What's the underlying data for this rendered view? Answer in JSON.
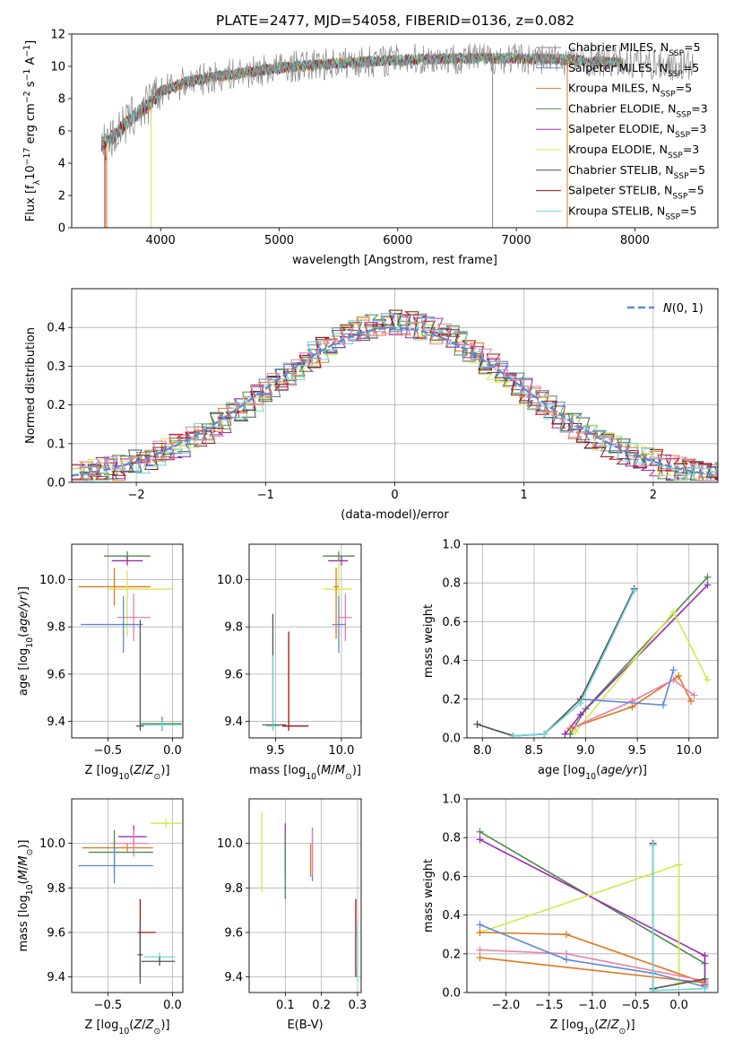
{
  "figure": {
    "title": "PLATE=2477, MJD=54058, FIBERID=0136, z=0.082"
  },
  "chart_data": [
    {
      "id": "spectrum",
      "type": "line",
      "title": "PLATE=2477, MJD=54058, FIBERID=0136, z=0.082",
      "xlabel": "wavelength [Angstrom, rest frame]",
      "ylabel": "Flux [fλ10⁻¹⁷ erg cm⁻² s⁻¹ A⁻¹]",
      "xlim": [
        3250,
        8700
      ],
      "ylim": [
        0,
        12
      ],
      "xticks": [
        4000,
        5000,
        6000,
        7000,
        8000
      ],
      "yticks": [
        0,
        2,
        4,
        6,
        8,
        10,
        12
      ],
      "grid": false,
      "legend_position": "right",
      "spectrum_shape": {
        "x": [
          3500,
          3600,
          3700,
          3800,
          3900,
          4000,
          4200,
          4500,
          5000,
          5500,
          6000,
          6500,
          7000,
          7500,
          8000,
          8500
        ],
        "y": [
          5.2,
          5.6,
          6.4,
          7.1,
          7.6,
          8.4,
          9.0,
          9.4,
          9.9,
          10.2,
          10.4,
          10.5,
          10.5,
          10.4,
          10.2,
          10.0
        ]
      },
      "series": [
        {
          "name": "Chabrier MILES, N_SSP=5",
          "label_main": "Chabrier MILES, N",
          "label_sub": "SSP",
          "label_tail": "=5",
          "color": "#888888"
        },
        {
          "name": "Salpeter MILES, N_SSP=5",
          "label_main": "Salpeter MILES, N",
          "label_sub": "SSP",
          "label_tail": "=5",
          "color": "#5b8bd6"
        },
        {
          "name": "Kroupa MILES, N_SSP=5",
          "label_main": "Kroupa MILES, N",
          "label_sub": "SSP",
          "label_tail": "=5",
          "color": "#e07820"
        },
        {
          "name": "Chabrier ELODIE, N_SSP=3",
          "label_main": "Chabrier ELODIE, N",
          "label_sub": "SSP",
          "label_tail": "=3",
          "color": "#4e8a4e"
        },
        {
          "name": "Salpeter ELODIE, N_SSP=3",
          "label_main": "Salpeter ELODIE, N",
          "label_sub": "SSP",
          "label_tail": "=3",
          "color": "#9a2cb0"
        },
        {
          "name": "Kroupa ELODIE, N_SSP=3",
          "label_main": "Kroupa ELODIE, N",
          "label_sub": "SSP",
          "label_tail": "=3",
          "color": "#d4e84a"
        },
        {
          "name": "Chabrier STELIB, N_SSP=5",
          "label_main": "Chabrier STELIB, N",
          "label_sub": "SSP",
          "label_tail": "=5",
          "color": "#555555"
        },
        {
          "name": "Salpeter STELIB, N_SSP=5",
          "label_main": "Salpeter STELIB, N",
          "label_sub": "SSP",
          "label_tail": "=5",
          "color": "#a01010"
        },
        {
          "name": "Kroupa STELIB, N_SSP=5",
          "label_main": "Kroupa STELIB, N",
          "label_sub": "SSP",
          "label_tail": "=5",
          "color": "#6fd6d6"
        }
      ]
    },
    {
      "id": "residuals",
      "type": "line",
      "xlabel": "(data-model)/error",
      "ylabel": "Normed distribution",
      "xlim": [
        -2.5,
        2.5
      ],
      "ylim": [
        0,
        0.5
      ],
      "xticks": [
        -2,
        -1,
        0,
        1,
        2
      ],
      "yticks": [
        0.0,
        0.1,
        0.2,
        0.3,
        0.4
      ],
      "grid": true,
      "legend_position": "top-right",
      "gaussian": {
        "name": "N(0,1)",
        "mean": 0,
        "sigma": 1,
        "color": "#5b8bd6"
      },
      "hist_colors": [
        "#5b8bd6",
        "#e07820",
        "#4e8a4e",
        "#9a2cb0",
        "#d4e84a",
        "#555555",
        "#a01010",
        "#6fd6d6",
        "#e880b0"
      ],
      "bin_width": 0.1,
      "hist_reference": [
        0.018,
        0.02,
        0.026,
        0.03,
        0.033,
        0.038,
        0.044,
        0.05,
        0.057,
        0.064,
        0.072,
        0.08,
        0.09,
        0.1,
        0.11,
        0.122,
        0.133,
        0.146,
        0.16,
        0.174,
        0.188,
        0.203,
        0.218,
        0.234,
        0.25,
        0.266,
        0.282,
        0.298,
        0.313,
        0.328,
        0.343,
        0.356,
        0.369,
        0.38,
        0.39,
        0.397,
        0.403,
        0.408,
        0.41,
        0.41,
        0.41,
        0.408,
        0.403,
        0.397,
        0.39,
        0.38,
        0.369,
        0.356,
        0.343,
        0.328,
        0.313,
        0.298,
        0.282,
        0.266,
        0.25,
        0.234,
        0.218,
        0.203,
        0.188,
        0.174,
        0.16,
        0.146,
        0.133,
        0.122,
        0.11,
        0.1,
        0.09,
        0.08,
        0.072,
        0.064,
        0.057,
        0.05,
        0.044,
        0.038,
        0.033,
        0.03,
        0.026,
        0.024,
        0.022,
        0.02
      ]
    },
    {
      "id": "age_vs_Z",
      "type": "scatter",
      "xlabel": "Z [log10(Z/Z⊙)]",
      "ylabel": "age  [log10(age/yr)]",
      "xlim": [
        -0.78,
        0.08
      ],
      "ylim": [
        9.33,
        10.15
      ],
      "xticks": [
        -0.5,
        0.0
      ],
      "yticks": [
        9.4,
        9.6,
        9.8,
        10.0
      ],
      "grid": true,
      "crosses": [
        {
          "x": -0.35,
          "y": 10.1,
          "xerr": [
            0.18,
            0.18
          ],
          "yerr": [
            0.02,
            0.02
          ],
          "color": "#4e8a4e"
        },
        {
          "x": -0.35,
          "y": 10.08,
          "xerr": [
            0.12,
            0.12
          ],
          "yerr": [
            0.02,
            0.02
          ],
          "color": "#9a2cb0"
        },
        {
          "x": -0.45,
          "y": 9.97,
          "xerr": [
            0.28,
            0.28
          ],
          "yerr": [
            0.08,
            0.08
          ],
          "color": "#e07820"
        },
        {
          "x": -0.35,
          "y": 9.96,
          "xerr": [
            0.15,
            0.35
          ],
          "yerr": [
            0.2,
            0.08
          ],
          "color": "#d4e84a"
        },
        {
          "x": -0.3,
          "y": 9.84,
          "xerr": [
            0.13,
            0.13
          ],
          "yerr": [
            0.1,
            0.1
          ],
          "color": "#e880b0"
        },
        {
          "x": -0.38,
          "y": 9.81,
          "xerr": [
            0.33,
            0.15
          ],
          "yerr": [
            0.12,
            0.12
          ],
          "color": "#5b8bd6"
        },
        {
          "x": -0.08,
          "y": 9.39,
          "xerr": [
            0.17,
            0.15
          ],
          "yerr": [
            0.03,
            0.03
          ],
          "color": "#4e8a4e"
        },
        {
          "x": -0.08,
          "y": 9.385,
          "xerr": [
            0.17,
            0.15
          ],
          "yerr": [
            0.02,
            0.02
          ],
          "color": "#6fd6d6"
        },
        {
          "x": -0.25,
          "y": 9.38,
          "xerr": [
            0.03,
            0.03
          ],
          "yerr": [
            0.02,
            0.45
          ],
          "color": "#555555"
        }
      ]
    },
    {
      "id": "age_vs_mass",
      "type": "scatter",
      "xlabel": "mass [log10(M/M⊙)]",
      "ylabel": "",
      "xlim": [
        9.3,
        10.15
      ],
      "ylim": [
        9.33,
        10.15
      ],
      "xticks": [
        9.5,
        10.0
      ],
      "yticks": [
        9.4,
        9.6,
        9.8,
        10.0
      ],
      "grid": true,
      "crosses": [
        {
          "x": 9.98,
          "y": 10.1,
          "xerr": [
            0.12,
            0.12
          ],
          "yerr": [
            0.02,
            0.02
          ],
          "color": "#4e8a4e"
        },
        {
          "x": 10.0,
          "y": 10.08,
          "xerr": [
            0.1,
            0.05
          ],
          "yerr": [
            0.02,
            0.02
          ],
          "color": "#9a2cb0"
        },
        {
          "x": 9.98,
          "y": 9.96,
          "xerr": [
            0.12,
            0.1
          ],
          "yerr": [
            0.2,
            0.12
          ],
          "color": "#d4e84a"
        },
        {
          "x": 10.03,
          "y": 9.84,
          "xerr": [
            0.05,
            0.05
          ],
          "yerr": [
            0.1,
            0.1
          ],
          "color": "#e880b0"
        },
        {
          "x": 9.98,
          "y": 9.81,
          "xerr": [
            0.05,
            0.05
          ],
          "yerr": [
            0.12,
            0.12
          ],
          "color": "#5b8bd6"
        },
        {
          "x": 9.96,
          "y": 9.97,
          "xerr": [
            0.02,
            0.02
          ],
          "yerr": [
            0.22,
            0.08
          ],
          "color": "#e07820"
        },
        {
          "x": 9.48,
          "y": 9.385,
          "xerr": [
            0.08,
            0.1
          ],
          "yerr": [
            0.02,
            0.47
          ],
          "color": "#555555"
        },
        {
          "x": 9.48,
          "y": 9.38,
          "xerr": [
            0.05,
            0.05
          ],
          "yerr": [
            0.02,
            0.3
          ],
          "color": "#6fd6d6"
        },
        {
          "x": 9.6,
          "y": 9.38,
          "xerr": [
            0.05,
            0.15
          ],
          "yerr": [
            0.02,
            0.4
          ],
          "color": "#a01010"
        }
      ]
    },
    {
      "id": "mass_weight_vs_age",
      "type": "line",
      "xlabel": "age  [log10(age/yr)]",
      "ylabel": "mass weight",
      "xlim": [
        7.85,
        10.28
      ],
      "ylim": [
        0,
        1.0
      ],
      "xticks": [
        8.0,
        8.5,
        9.0,
        9.5,
        10.0
      ],
      "yticks": [
        0.0,
        0.2,
        0.4,
        0.6,
        0.8,
        1.0
      ],
      "grid": true,
      "series": [
        {
          "color": "#4e8a4e",
          "x": [
            8.85,
            9.0,
            10.18
          ],
          "y": [
            0.02,
            0.15,
            0.83
          ]
        },
        {
          "color": "#9a2cb0",
          "x": [
            8.8,
            8.95,
            10.18
          ],
          "y": [
            0.02,
            0.12,
            0.79
          ]
        },
        {
          "color": "#d4e84a",
          "x": [
            8.9,
            9.85,
            10.18
          ],
          "y": [
            0.03,
            0.65,
            0.3
          ]
        },
        {
          "color": "#e07820",
          "x": [
            8.85,
            9.45,
            9.9,
            10.02
          ],
          "y": [
            0.05,
            0.16,
            0.32,
            0.19
          ]
        },
        {
          "color": "#e880b0",
          "x": [
            8.9,
            9.45,
            9.85,
            10.05
          ],
          "y": [
            0.06,
            0.19,
            0.3,
            0.22
          ]
        },
        {
          "color": "#5b8bd6",
          "x": [
            7.95,
            8.3,
            8.6,
            8.95,
            9.75,
            9.85
          ],
          "y": [
            0.07,
            0.01,
            0.02,
            0.2,
            0.17,
            0.35
          ]
        },
        {
          "color": "#555555",
          "x": [
            7.95,
            8.3,
            8.6,
            8.95,
            9.47
          ],
          "y": [
            0.07,
            0.01,
            0.02,
            0.2,
            0.77
          ]
        },
        {
          "color": "#6fd6d6",
          "x": [
            8.3,
            8.6,
            8.95,
            9.47
          ],
          "y": [
            0.01,
            0.02,
            0.18,
            0.76
          ]
        }
      ]
    },
    {
      "id": "mass_vs_Z",
      "type": "scatter",
      "xlabel": "Z [log10(Z/Z⊙)]",
      "ylabel": "mass [log10(M/M⊙)]",
      "xlim": [
        -0.78,
        0.08
      ],
      "ylim": [
        9.33,
        10.2
      ],
      "xticks": [
        -0.5,
        0.0
      ],
      "yticks": [
        9.4,
        9.6,
        9.8,
        10.0
      ],
      "grid": true,
      "crosses": [
        {
          "x": -0.05,
          "y": 10.09,
          "xerr": [
            0.12,
            0.12
          ],
          "yerr": [
            0.02,
            0.02
          ],
          "color": "#d4e84a"
        },
        {
          "x": -0.3,
          "y": 10.03,
          "xerr": [
            0.12,
            0.1
          ],
          "yerr": [
            0.05,
            0.05
          ],
          "color": "#9a2cb0"
        },
        {
          "x": -0.35,
          "y": 9.98,
          "xerr": [
            0.35,
            0.2
          ],
          "yerr": [
            0.02,
            0.02
          ],
          "color": "#e07820"
        },
        {
          "x": -0.3,
          "y": 10.0,
          "xerr": [
            0.18,
            0.12
          ],
          "yerr": [
            0.06,
            0.06
          ],
          "color": "#e880b0"
        },
        {
          "x": -0.45,
          "y": 9.96,
          "xerr": [
            0.2,
            0.3
          ],
          "yerr": [
            0.1,
            0.1
          ],
          "color": "#4e8a4e"
        },
        {
          "x": -0.45,
          "y": 9.9,
          "xerr": [
            0.28,
            0.3
          ],
          "yerr": [
            0.08,
            0.08
          ],
          "color": "#5b8bd6"
        },
        {
          "x": -0.25,
          "y": 9.6,
          "xerr": [
            0.02,
            0.12
          ],
          "yerr": [
            0.2,
            0.15
          ],
          "color": "#a01010"
        },
        {
          "x": -0.1,
          "y": 9.49,
          "xerr": [
            0.12,
            0.12
          ],
          "yerr": [
            0.02,
            0.02
          ],
          "color": "#6fd6d6"
        },
        {
          "x": -0.1,
          "y": 9.47,
          "xerr": [
            0.14,
            0.12
          ],
          "yerr": [
            0.02,
            0.02
          ],
          "color": "#555555"
        },
        {
          "x": -0.25,
          "y": 9.5,
          "xerr": [
            0.02,
            0.02
          ],
          "yerr": [
            0.13,
            0.15
          ],
          "color": "#555555"
        }
      ]
    },
    {
      "id": "mass_vs_ebv",
      "type": "scatter",
      "xlabel": "E(B-V)",
      "ylabel": "",
      "xlim": [
        0.0,
        0.31
      ],
      "ylim": [
        9.33,
        10.2
      ],
      "xticks": [
        0.1,
        0.2,
        0.3
      ],
      "yticks": [
        9.4,
        9.6,
        9.8,
        10.0
      ],
      "grid": true,
      "crosses": [
        {
          "x": 0.035,
          "y": 9.96,
          "xerr": [
            0,
            0
          ],
          "yerr": [
            0.18,
            0.18
          ],
          "color": "#d4e84a"
        },
        {
          "x": 0.1,
          "y": 9.97,
          "xerr": [
            0,
            0
          ],
          "yerr": [
            0.12,
            0.12
          ],
          "color": "#9a2cb0"
        },
        {
          "x": 0.1,
          "y": 9.95,
          "xerr": [
            0,
            0
          ],
          "yerr": [
            0.2,
            0.1
          ],
          "color": "#4e8a4e"
        },
        {
          "x": 0.17,
          "y": 9.95,
          "xerr": [
            0,
            0
          ],
          "yerr": [
            0.1,
            0.05
          ],
          "color": "#e07820"
        },
        {
          "x": 0.175,
          "y": 9.95,
          "xerr": [
            0,
            0
          ],
          "yerr": [
            0.12,
            0.12
          ],
          "color": "#5b8bd6"
        },
        {
          "x": 0.175,
          "y": 9.96,
          "xerr": [
            0,
            0
          ],
          "yerr": [
            0.1,
            0.1
          ],
          "color": "#e880b0"
        },
        {
          "x": 0.295,
          "y": 9.6,
          "xerr": [
            0,
            0
          ],
          "yerr": [
            0.2,
            0.15
          ],
          "color": "#a01010"
        },
        {
          "x": 0.3,
          "y": 9.5,
          "xerr": [
            0,
            0
          ],
          "yerr": [
            0.12,
            0.15
          ],
          "color": "#6fd6d6"
        }
      ]
    },
    {
      "id": "mass_weight_vs_Z",
      "type": "line",
      "xlabel": "Z [log10(Z/Z⊙)]",
      "ylabel": "mass weight",
      "xlim": [
        -2.45,
        0.45
      ],
      "ylim": [
        0,
        1.0
      ],
      "xticks": [
        -2.0,
        -1.5,
        -1.0,
        -0.5,
        0.0
      ],
      "yticks": [
        0.0,
        0.2,
        0.4,
        0.6,
        0.8,
        1.0
      ],
      "grid": true,
      "series": [
        {
          "color": "#4e8a4e",
          "x": [
            -2.3,
            0.3
          ],
          "y": [
            0.83,
            0.15
          ]
        },
        {
          "color": "#9a2cb0",
          "x": [
            -2.3,
            0.3,
            0.3
          ],
          "y": [
            0.79,
            0.19,
            0.04
          ]
        },
        {
          "color": "#d4e84a",
          "x": [
            -2.3,
            0.0,
            0.0
          ],
          "y": [
            0.31,
            0.66,
            0.05
          ]
        },
        {
          "color": "#e07820",
          "x": [
            -2.3,
            -1.3,
            0.3,
            -2.3
          ],
          "y": [
            0.31,
            0.3,
            0.05,
            0.18
          ]
        },
        {
          "color": "#e880b0",
          "x": [
            -2.3,
            -1.3,
            0.3
          ],
          "y": [
            0.22,
            0.2,
            0.06
          ]
        },
        {
          "color": "#5b8bd6",
          "x": [
            -2.3,
            -1.3,
            -0.3,
            0.3
          ],
          "y": [
            0.35,
            0.17,
            0.1,
            0.03
          ]
        },
        {
          "color": "#555555",
          "x": [
            -0.3,
            -0.3,
            0.3
          ],
          "y": [
            0.77,
            0.02,
            0.07
          ]
        },
        {
          "color": "#6fd6d6",
          "x": [
            -0.3,
            -0.3,
            0.3
          ],
          "y": [
            0.76,
            0.01,
            0.02
          ]
        }
      ]
    }
  ]
}
